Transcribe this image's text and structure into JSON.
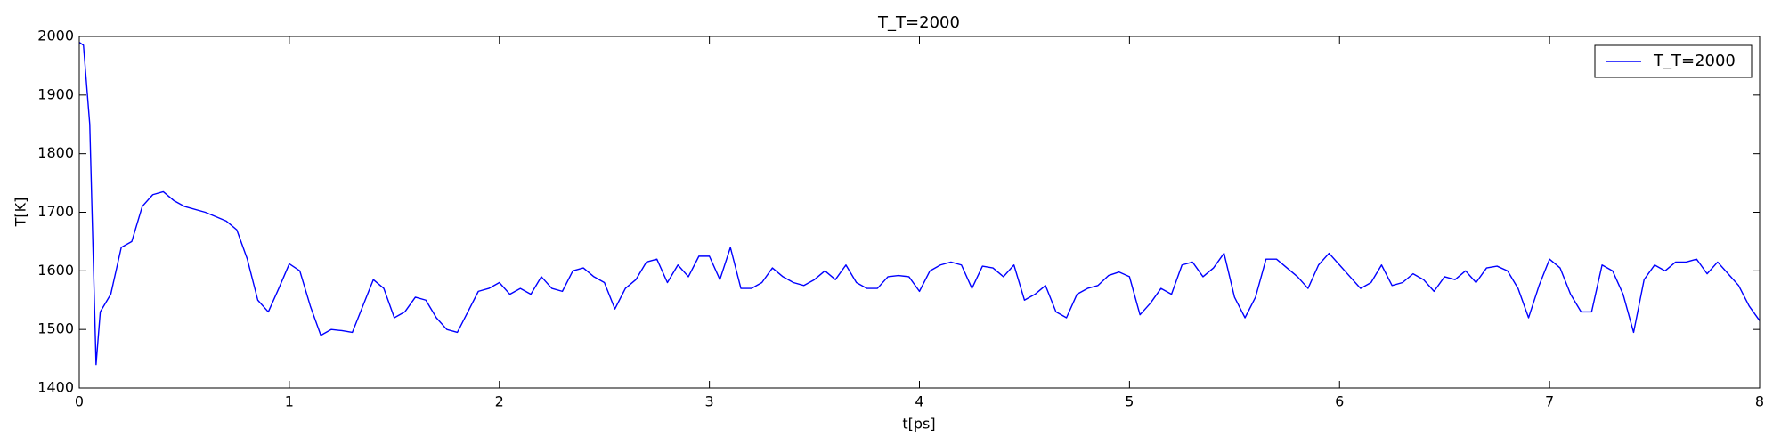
{
  "chart_data": {
    "type": "line",
    "title": "T_T=2000",
    "xlabel": "t[ps]",
    "ylabel": "T[K]",
    "x": [
      0,
      0.02,
      0.05,
      0.08,
      0.1,
      0.15,
      0.2,
      0.25,
      0.3,
      0.35,
      0.4,
      0.45,
      0.5,
      0.6,
      0.7,
      0.75,
      0.8,
      0.85,
      0.9,
      0.95,
      1.0,
      1.05,
      1.1,
      1.15,
      1.2,
      1.25,
      1.3,
      1.35,
      1.4,
      1.45,
      1.5,
      1.55,
      1.6,
      1.65,
      1.7,
      1.75,
      1.8,
      1.85,
      1.9,
      1.95,
      2.0,
      2.05,
      2.1,
      2.15,
      2.2,
      2.25,
      2.3,
      2.35,
      2.4,
      2.45,
      2.5,
      2.55,
      2.6,
      2.65,
      2.7,
      2.75,
      2.8,
      2.85,
      2.9,
      2.95,
      3.0,
      3.05,
      3.1,
      3.15,
      3.2,
      3.25,
      3.3,
      3.35,
      3.4,
      3.45,
      3.5,
      3.55,
      3.6,
      3.65,
      3.7,
      3.75,
      3.8,
      3.85,
      3.9,
      3.95,
      4.0,
      4.05,
      4.1,
      4.15,
      4.2,
      4.25,
      4.3,
      4.35,
      4.4,
      4.45,
      4.5,
      4.55,
      4.6,
      4.65,
      4.7,
      4.75,
      4.8,
      4.85,
      4.9,
      4.95,
      5.0,
      5.05,
      5.1,
      5.15,
      5.2,
      5.25,
      5.3,
      5.35,
      5.4,
      5.45,
      5.5,
      5.55,
      5.6,
      5.65,
      5.7,
      5.75,
      5.8,
      5.85,
      5.9,
      5.95,
      6.0,
      6.05,
      6.1,
      6.15,
      6.2,
      6.25,
      6.3,
      6.35,
      6.4,
      6.45,
      6.5,
      6.55,
      6.6,
      6.65,
      6.7,
      6.75,
      6.8,
      6.85,
      6.9,
      6.95,
      7.0,
      7.05,
      7.1,
      7.15,
      7.2,
      7.25,
      7.3,
      7.35,
      7.4,
      7.45,
      7.5,
      7.55,
      7.6,
      7.65,
      7.7,
      7.75,
      7.8,
      7.85,
      7.9,
      7.95,
      8.0
    ],
    "series": [
      {
        "name": "T_T=2000",
        "color": "#0000ff",
        "values": [
          1990,
          1985,
          1850,
          1440,
          1530,
          1560,
          1640,
          1650,
          1710,
          1730,
          1735,
          1720,
          1710,
          1700,
          1685,
          1670,
          1620,
          1550,
          1530,
          1570,
          1612,
          1600,
          1540,
          1490,
          1500,
          1498,
          1495,
          1540,
          1585,
          1570,
          1520,
          1530,
          1555,
          1550,
          1520,
          1500,
          1495,
          1530,
          1565,
          1570,
          1580,
          1560,
          1570,
          1560,
          1590,
          1570,
          1565,
          1600,
          1605,
          1590,
          1580,
          1535,
          1570,
          1585,
          1615,
          1620,
          1580,
          1610,
          1590,
          1625,
          1625,
          1585,
          1640,
          1570,
          1570,
          1580,
          1605,
          1590,
          1580,
          1575,
          1585,
          1600,
          1585,
          1610,
          1580,
          1570,
          1570,
          1590,
          1592,
          1590,
          1565,
          1600,
          1610,
          1615,
          1610,
          1570,
          1608,
          1605,
          1590,
          1610,
          1550,
          1560,
          1575,
          1530,
          1520,
          1560,
          1570,
          1575,
          1592,
          1598,
          1590,
          1525,
          1545,
          1570,
          1560,
          1610,
          1615,
          1590,
          1605,
          1630,
          1555,
          1520,
          1555,
          1620,
          1620,
          1605,
          1590,
          1570,
          1610,
          1630,
          1610,
          1590,
          1570,
          1580,
          1610,
          1575,
          1580,
          1595,
          1585,
          1565,
          1590,
          1585,
          1600,
          1580,
          1605,
          1608,
          1600,
          1570,
          1520,
          1575,
          1620,
          1605,
          1560,
          1530,
          1530,
          1610,
          1600,
          1560,
          1495,
          1585,
          1610,
          1600,
          1615,
          1615,
          1620,
          1595,
          1615,
          1595,
          1575,
          1540,
          1515
        ]
      }
    ],
    "xlim": [
      0,
      8
    ],
    "xticks": [
      0,
      1,
      2,
      3,
      4,
      5,
      6,
      7,
      8
    ],
    "ylim": [
      1400,
      2000
    ],
    "yticks": [
      1400,
      1500,
      1600,
      1700,
      1800,
      1900,
      2000
    ],
    "legend": "upper right"
  }
}
